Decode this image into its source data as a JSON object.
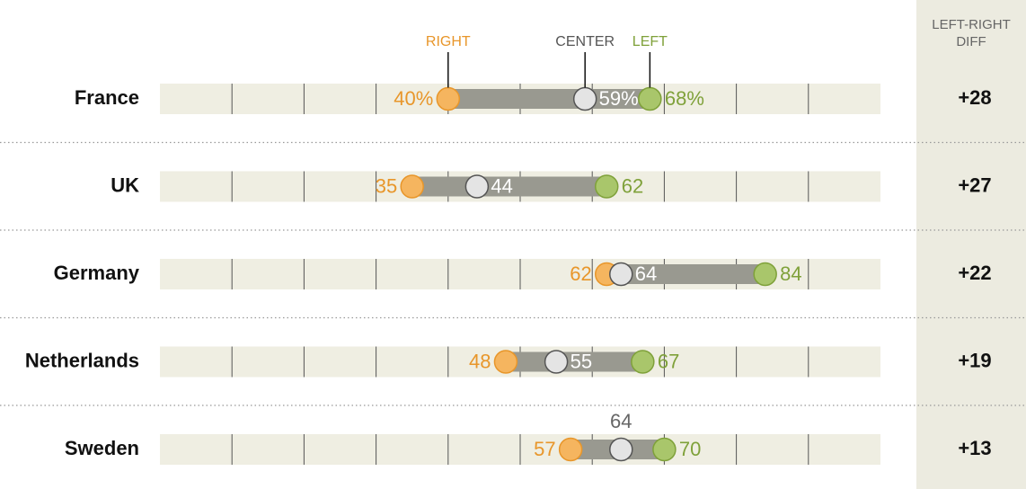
{
  "chart_data": {
    "type": "dot",
    "categories": [
      "France",
      "UK",
      "Germany",
      "Netherlands",
      "Sweden"
    ],
    "series": [
      {
        "name": "RIGHT",
        "color": "#e8962a",
        "fill": "#f5b55f",
        "values": [
          40,
          35,
          62,
          48,
          57
        ],
        "value_labels": [
          "40%",
          "35",
          "62",
          "48",
          "57"
        ]
      },
      {
        "name": "CENTER",
        "color": "#555555",
        "fill": "#e4e4e4",
        "values": [
          59,
          44,
          64,
          55,
          64
        ],
        "value_labels": [
          "59%",
          "44",
          "64",
          "55",
          "64"
        ]
      },
      {
        "name": "LEFT",
        "color": "#7fa13a",
        "fill": "#a9c66b",
        "values": [
          68,
          62,
          84,
          67,
          70
        ],
        "value_labels": [
          "68%",
          "62",
          "84",
          "67",
          "70"
        ]
      }
    ],
    "diff": {
      "title": "LEFT-RIGHT DIFF",
      "values": [
        28,
        27,
        22,
        19,
        13
      ],
      "value_labels": [
        "+28",
        "+27",
        "+22",
        "+19",
        "+13"
      ]
    },
    "xlim": [
      0,
      100
    ],
    "xticks": [
      10,
      20,
      30,
      40,
      50,
      60,
      70,
      80,
      90
    ],
    "grid": true
  }
}
